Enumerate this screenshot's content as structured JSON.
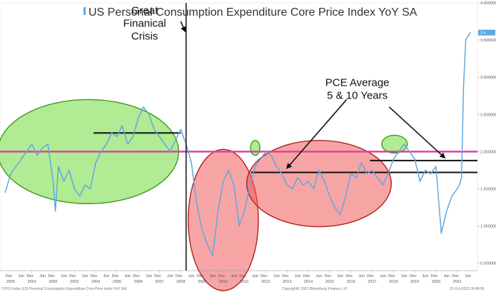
{
  "chart_data": {
    "type": "line",
    "title": "US Personal Consumption Expenditure Core Price Index YoY SA",
    "series": [
      {
        "name": "US Personal Consumption Expenditure Core Price Index YoY SA",
        "color": "#5fa8e0",
        "x": [
          1999.75,
          2000.0,
          2000.25,
          2000.5,
          2000.75,
          2001.0,
          2001.25,
          2001.5,
          2001.75,
          2002.0,
          2002.1,
          2002.25,
          2002.5,
          2002.75,
          2003.0,
          2003.25,
          2003.5,
          2003.75,
          2004.0,
          2004.25,
          2004.5,
          2004.75,
          2005.0,
          2005.25,
          2005.5,
          2005.75,
          2006.0,
          2006.25,
          2006.5,
          2006.75,
          2007.0,
          2007.25,
          2007.5,
          2007.75,
          2008.0,
          2008.25,
          2008.5,
          2008.75,
          2009.0,
          2009.25,
          2009.5,
          2009.75,
          2010.0,
          2010.25,
          2010.5,
          2010.75,
          2011.0,
          2011.25,
          2011.5,
          2011.75,
          2012.0,
          2012.25,
          2012.5,
          2012.75,
          2013.0,
          2013.25,
          2013.5,
          2013.75,
          2014.0,
          2014.25,
          2014.5,
          2014.75,
          2015.0,
          2015.25,
          2015.5,
          2015.75,
          2016.0,
          2016.25,
          2016.5,
          2016.75,
          2017.0,
          2017.25,
          2017.5,
          2017.75,
          2018.0,
          2018.25,
          2018.5,
          2018.75,
          2019.0,
          2019.25,
          2019.5,
          2019.75,
          2020.0,
          2020.25,
          2020.5,
          2020.75,
          2021.0,
          2021.1,
          2021.2,
          2021.3,
          2021.4,
          2021.5,
          2021.62
        ],
        "values": [
          1.45,
          1.7,
          1.8,
          1.9,
          2.0,
          2.1,
          1.95,
          2.05,
          2.1,
          1.6,
          1.2,
          1.8,
          1.6,
          1.75,
          1.5,
          1.4,
          1.55,
          1.5,
          1.85,
          2.0,
          2.1,
          2.25,
          2.2,
          2.35,
          2.1,
          2.2,
          2.45,
          2.6,
          2.5,
          2.3,
          2.2,
          2.1,
          2.0,
          2.15,
          2.3,
          2.1,
          1.85,
          1.3,
          0.95,
          0.75,
          0.6,
          1.2,
          1.6,
          1.75,
          1.55,
          1.0,
          1.2,
          1.55,
          1.8,
          1.9,
          2.0,
          1.95,
          1.8,
          1.7,
          1.55,
          1.5,
          1.65,
          1.55,
          1.6,
          1.5,
          1.75,
          1.6,
          1.4,
          1.25,
          1.15,
          1.4,
          1.7,
          1.65,
          1.85,
          1.7,
          1.75,
          1.65,
          1.55,
          1.7,
          1.9,
          2.0,
          2.1,
          2.0,
          1.9,
          1.6,
          1.75,
          1.7,
          1.8,
          0.9,
          1.2,
          1.4,
          1.5,
          1.55,
          1.65,
          2.9,
          3.5,
          3.55,
          3.6
        ]
      }
    ],
    "x_ticks": [
      2000,
      2001,
      2002,
      2003,
      2004,
      2005,
      2006,
      2007,
      2008,
      2009,
      2010,
      2011,
      2012,
      2013,
      2014,
      2015,
      2016,
      2017,
      2018,
      2019,
      2020,
      2021
    ],
    "x_tick_labels": [
      "2000",
      "2001",
      "2002",
      "2003",
      "2004",
      "2005",
      "2006",
      "2007",
      "2008",
      "2009",
      "2010",
      "2011",
      "2012",
      "2013",
      "2014",
      "2015",
      "2016",
      "2017",
      "2018",
      "2019",
      "2020",
      "2021"
    ],
    "x_minor_labels": [
      "Dec",
      "Jun"
    ],
    "xlim": [
      1999.5,
      2021.95
    ],
    "y_ticks": [
      0.5,
      1.0,
      1.5,
      2.0,
      2.5,
      3.0,
      3.5,
      4.0
    ],
    "y_tick_labels": [
      "0.500000",
      "1.000000",
      "1.500000",
      "2.000000",
      "2.500000",
      "3.000000",
      "3.500000",
      "4.000000"
    ],
    "ylim": [
      0.4,
      4.0
    ],
    "last_value_label": "3.6",
    "reference_lines": [
      {
        "name": "target-2pct-line",
        "y": 2.0,
        "x0": 1999.5,
        "x1": 2021.95,
        "color": "#e0429a",
        "width": 2.5
      },
      {
        "name": "pre-gfc-average-line",
        "y": 2.25,
        "x0": 2003.9,
        "x1": 2008.0,
        "color": "#111111",
        "width": 2
      },
      {
        "name": "pce-average-5yr-line",
        "y": 1.88,
        "x0": 2016.9,
        "x1": 2021.95,
        "color": "#111111",
        "width": 2
      },
      {
        "name": "pce-average-10yr-line",
        "y": 1.72,
        "x0": 2011.3,
        "x1": 2021.95,
        "color": "#111111",
        "width": 2
      }
    ],
    "event_line": {
      "name": "gfc-line",
      "x": 2008.25,
      "color": "#111111"
    },
    "annotations": [
      {
        "name": "gfc-label",
        "lines": [
          "Great",
          "Finanical",
          "Crisis"
        ],
        "x": 2006.3,
        "y": 3.85
      },
      {
        "name": "pce-average-label",
        "lines": [
          "PCE Average",
          "5 & 10 Years"
        ],
        "x": 2016.3,
        "y": 2.88
      }
    ],
    "highlights": [
      {
        "name": "highlight-above-target-2000s",
        "color": "green",
        "cx": 2003.65,
        "cy": 2.0,
        "rx": 4.25,
        "ry": 0.7
      },
      {
        "name": "highlight-below-target-gfc",
        "color": "red",
        "cx": 2010.0,
        "cy": 1.08,
        "rx": 1.65,
        "ry": 0.95
      },
      {
        "name": "highlight-2012-spike",
        "color": "green",
        "cx": 2011.5,
        "cy": 2.05,
        "rx": 0.22,
        "ry": 0.1
      },
      {
        "name": "highlight-below-target-2010s",
        "color": "red",
        "cx": 2014.5,
        "cy": 1.57,
        "rx": 3.4,
        "ry": 0.58
      },
      {
        "name": "highlight-2018-spike",
        "color": "green",
        "cx": 2018.05,
        "cy": 2.1,
        "rx": 0.6,
        "ry": 0.12
      }
    ],
    "footer": {
      "left": "CPXX Index (US Personal Consumption Expenditure Core Price Index YoY SA)",
      "center": "Copyright© 2021 Bloomberg Finance L.P.",
      "right": "21-Oct-2021 09:48:06"
    },
    "xlabel": "",
    "ylabel": "",
    "legend": "top-left",
    "grid": false
  }
}
